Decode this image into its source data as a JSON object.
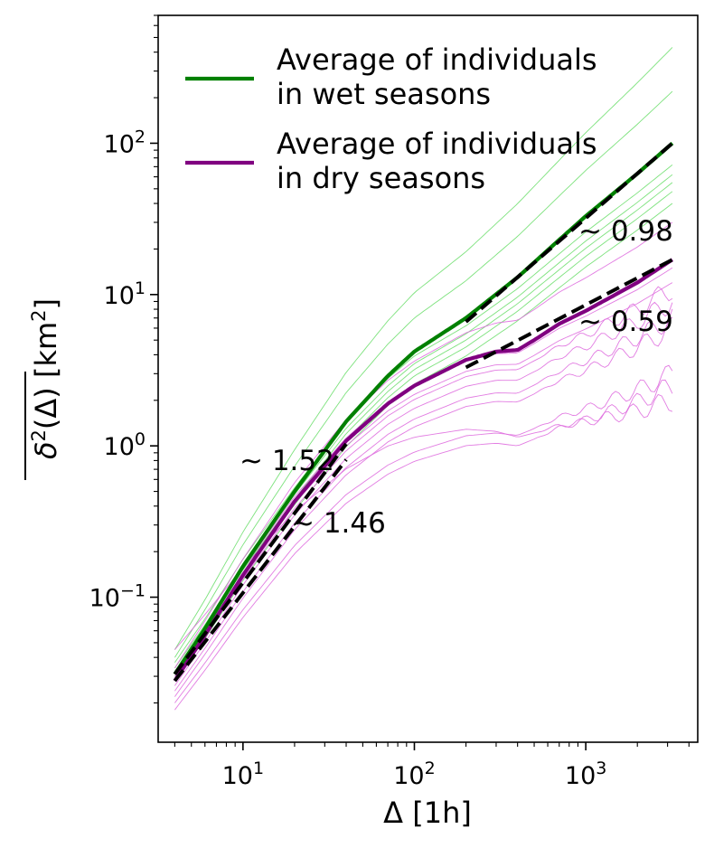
{
  "chart_data": {
    "type": "line",
    "title": "",
    "xlabel": "Δ [1h]",
    "ylabel": "δ²(Δ) [km²]",
    "xscale": "log",
    "yscale": "log",
    "xlim": [
      3.2,
      4500
    ],
    "ylim": [
      0.011,
      700
    ],
    "grid": false,
    "legend_position": "top-left",
    "x_tick_labels": [
      {
        "base": "10",
        "exp": "1",
        "value": 10
      },
      {
        "base": "10",
        "exp": "2",
        "value": 100
      },
      {
        "base": "10",
        "exp": "3",
        "value": 1000
      }
    ],
    "y_tick_labels": [
      {
        "base": "10",
        "exp": "−1",
        "value": 0.1
      },
      {
        "base": "10",
        "exp": "0",
        "value": 1
      },
      {
        "base": "10",
        "exp": "1",
        "value": 10
      },
      {
        "base": "10",
        "exp": "2",
        "value": 100
      }
    ],
    "series": [
      {
        "name": "Average of individuals in wet seasons",
        "legend_lines": [
          "Average of individuals",
          "in wet seasons"
        ],
        "color": "#008000",
        "x": [
          4,
          6,
          10,
          20,
          40,
          70,
          100,
          200,
          400,
          700,
          1000,
          2000,
          3200
        ],
        "y": [
          0.031,
          0.062,
          0.16,
          0.5,
          1.45,
          2.9,
          4.2,
          7.0,
          13.0,
          23.0,
          33.0,
          63.0,
          100.0
        ]
      },
      {
        "name": "Average of individuals in dry seasons",
        "legend_lines": [
          "Average of individuals",
          "in dry seasons"
        ],
        "color": "#800080",
        "x": [
          4,
          6,
          10,
          20,
          40,
          70,
          100,
          200,
          300,
          400,
          500,
          700,
          1000,
          2000,
          3200
        ],
        "y": [
          0.028,
          0.056,
          0.14,
          0.43,
          1.08,
          1.9,
          2.5,
          3.7,
          4.2,
          4.3,
          5.0,
          6.4,
          7.8,
          12.0,
          17.0
        ]
      }
    ],
    "fits": [
      {
        "label": "~ 1.52",
        "exponent": 1.52,
        "x": [
          4,
          40
        ],
        "y": [
          0.031,
          1.03
        ],
        "color": "#000000"
      },
      {
        "label": "~ 1.46",
        "exponent": 1.46,
        "x": [
          4,
          40
        ],
        "y": [
          0.028,
          0.81
        ],
        "color": "#000000"
      },
      {
        "label": "~ 0.98",
        "exponent": 0.98,
        "x": [
          200,
          3200
        ],
        "y": [
          6.6,
          100.0
        ],
        "color": "#000000"
      },
      {
        "label": "~ 0.59",
        "exponent": 0.59,
        "x": [
          200,
          3200
        ],
        "y": [
          3.3,
          17.0
        ],
        "color": "#000000"
      }
    ],
    "individuals": {
      "wet_color": "#66dd66",
      "dry_color": "#dd66dd",
      "wet_end_values": [
        430,
        220,
        72,
        62,
        55,
        48,
        40
      ],
      "dry_end_values": [
        30,
        15,
        12,
        11,
        9,
        7,
        6,
        3,
        2.5,
        2
      ],
      "start_values": [
        0.045,
        0.04,
        0.037,
        0.034,
        0.032,
        0.03,
        0.028,
        0.026,
        0.024,
        0.022,
        0.02,
        0.018
      ]
    }
  }
}
